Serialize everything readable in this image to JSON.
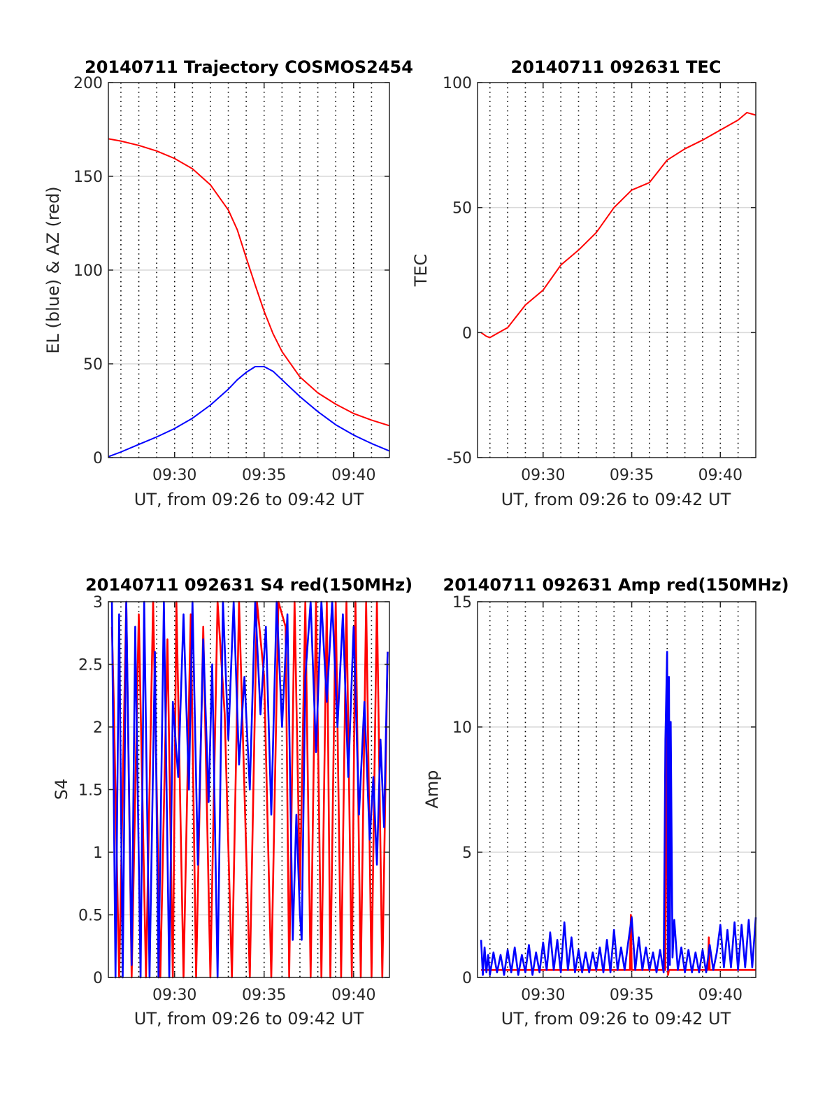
{
  "colors": {
    "red": "#ff0000",
    "blue": "#0000ff",
    "grid_major": "#d9d9d9",
    "grid_dotted": "#000000",
    "axis": "#262626"
  },
  "chart_data": [
    {
      "type": "line",
      "title": "20140711 Trajectory COSMOS2454",
      "xlabel": "UT, from 09:26 to 09:42 UT",
      "ylabel": "EL (blue) & AZ (red)",
      "xlim_minutes": [
        26.3,
        42.0
      ],
      "ylim": [
        0,
        200
      ],
      "yticks": [
        0,
        50,
        100,
        150,
        200
      ],
      "ytick_labels": [
        "0",
        "50",
        "100",
        "150",
        "200"
      ],
      "xticks_minutes": [
        30,
        35,
        40
      ],
      "xtick_labels": [
        "09:30",
        "09:35",
        "09:40"
      ],
      "dotted_vlines_minutes": [
        27,
        28,
        29,
        30,
        31,
        32,
        33,
        34,
        35,
        36,
        37,
        38,
        39,
        40,
        41
      ],
      "grid": "horizontal",
      "series": [
        {
          "color": "#ff0000",
          "x_minutes": [
            26.3,
            27,
            28,
            29,
            30,
            31,
            32,
            33,
            33.5,
            34,
            34.5,
            35,
            35.5,
            36,
            37,
            38,
            39,
            40,
            41,
            42
          ],
          "values": [
            170,
            168.8,
            166.5,
            163.5,
            159.5,
            154,
            145.5,
            132,
            121.5,
            106.5,
            92,
            78,
            66,
            56.5,
            43,
            34.5,
            28.5,
            23.5,
            20,
            17
          ]
        },
        {
          "color": "#0000ff",
          "x_minutes": [
            26.3,
            27,
            28,
            29,
            30,
            31,
            32,
            33,
            33.5,
            34,
            34.5,
            35,
            35.5,
            36,
            37,
            38,
            39,
            40,
            41,
            42
          ],
          "values": [
            0.5,
            3,
            7,
            11,
            15.5,
            21,
            28,
            36.5,
            41.5,
            45.5,
            48.5,
            48.5,
            46,
            41.5,
            32.5,
            24.5,
            17.5,
            12,
            7.5,
            3.5
          ]
        }
      ]
    },
    {
      "type": "line",
      "title": "20140711 092631 TEC",
      "xlabel": "UT, from 09:26 to 09:42 UT",
      "ylabel": "TEC",
      "xlim_minutes": [
        26.3,
        42.0
      ],
      "ylim": [
        -50,
        100
      ],
      "yticks": [
        -50,
        0,
        50,
        100
      ],
      "ytick_labels": [
        "-50",
        "0",
        "50",
        "100"
      ],
      "xticks_minutes": [
        30,
        35,
        40
      ],
      "xtick_labels": [
        "09:30",
        "09:35",
        "09:40"
      ],
      "dotted_vlines_minutes": [
        27,
        28,
        29,
        30,
        31,
        32,
        33,
        34,
        35,
        36,
        37,
        38,
        39,
        40,
        41
      ],
      "grid": "horizontal",
      "series": [
        {
          "color": "#ff0000",
          "x_minutes": [
            26.5,
            26.8,
            27.0,
            27.5,
            28,
            29,
            30,
            31,
            32,
            33,
            34,
            35,
            36,
            37,
            38,
            39,
            40,
            41,
            41.5,
            42
          ],
          "values": [
            0,
            -1.5,
            -2,
            0,
            2,
            11,
            17,
            27,
            33,
            40,
            50,
            57,
            60,
            69,
            73.5,
            77,
            81,
            85,
            88,
            87
          ]
        }
      ]
    },
    {
      "type": "line",
      "title": "20140711 092631 S4 red(150MHz)",
      "xlabel": "UT, from 09:26 to 09:42 UT",
      "ylabel": "S4",
      "xlim_minutes": [
        26.3,
        42.0
      ],
      "ylim": [
        0,
        3
      ],
      "yticks": [
        0,
        0.5,
        1,
        1.5,
        2,
        2.5,
        3
      ],
      "ytick_labels": [
        "0",
        "0.5",
        "1",
        "1.5",
        "2",
        "2.5",
        "3"
      ],
      "xticks_minutes": [
        30,
        35,
        40
      ],
      "xtick_labels": [
        "09:30",
        "09:35",
        "09:40"
      ],
      "dotted_vlines_minutes": [
        27,
        28,
        29,
        30,
        31,
        32,
        33,
        34,
        35,
        36,
        37,
        38,
        39,
        40,
        41
      ],
      "grid": "horizontal",
      "series": [
        {
          "color": "#ff0000",
          "x_minutes": [
            26.5,
            26.6,
            26.9,
            27.3,
            27.6,
            28.0,
            28.4,
            28.8,
            29.2,
            29.6,
            29.9,
            30.1,
            30.5,
            30.9,
            31.2,
            31.6,
            32.0,
            32.4,
            32.8,
            33.2,
            33.6,
            33.9,
            34.2,
            34.6,
            35.0,
            35.4,
            35.8,
            36.2,
            36.4,
            36.7,
            37.0,
            37.3,
            37.6,
            37.9,
            38.2,
            38.5,
            38.7,
            39.0,
            39.3,
            39.6,
            39.9,
            40.1,
            40.4,
            40.7,
            41.0,
            41.3,
            41.6,
            41.9
          ],
          "values": [
            2.8,
            2.2,
            0,
            3,
            0,
            2.9,
            0,
            3,
            0,
            2.7,
            0,
            3,
            0,
            2.9,
            0,
            2.8,
            0,
            3,
            2.1,
            0,
            3,
            1.5,
            0,
            3,
            2.4,
            0,
            3,
            2.8,
            0,
            3,
            0.7,
            3,
            0,
            3,
            0,
            3,
            0,
            3,
            0,
            3,
            0,
            3,
            0,
            3,
            0,
            3,
            0,
            2.6
          ]
        },
        {
          "color": "#0000ff",
          "x_minutes": [
            26.5,
            26.7,
            26.9,
            27.1,
            27.3,
            27.6,
            27.8,
            28.1,
            28.3,
            28.6,
            28.9,
            29.1,
            29.4,
            29.7,
            29.9,
            30.2,
            30.5,
            30.8,
            31.0,
            31.3,
            31.6,
            31.9,
            32.1,
            32.4,
            32.7,
            33.0,
            33.3,
            33.6,
            33.9,
            34.2,
            34.5,
            34.8,
            35.1,
            35.4,
            35.7,
            36.0,
            36.3,
            36.6,
            36.8,
            37.0,
            37.1,
            37.3,
            37.6,
            37.9,
            38.2,
            38.5,
            38.8,
            39.1,
            39.4,
            39.7,
            40.0,
            40.3,
            40.6,
            40.9,
            41.1,
            41.3,
            41.5,
            41.7,
            41.9
          ],
          "values": [
            3,
            0,
            2.9,
            0,
            3,
            0.1,
            2.8,
            0,
            3,
            0,
            2.6,
            0,
            3,
            0,
            2.2,
            1.6,
            2.9,
            1.5,
            3,
            0.9,
            2.7,
            1.4,
            2.5,
            0,
            3,
            1.9,
            3,
            1.7,
            2.4,
            1.5,
            3,
            2.1,
            2.8,
            1.3,
            3,
            2.0,
            2.9,
            0.3,
            1.3,
            0.5,
            0.3,
            2.4,
            3,
            1.8,
            3,
            2.2,
            3,
            2.0,
            2.9,
            1.6,
            2.8,
            1.3,
            2.2,
            1.1,
            1.6,
            0.9,
            1.9,
            1.2,
            2.6
          ]
        }
      ]
    },
    {
      "type": "line",
      "title": "20140711 092631 Amp red(150MHz)",
      "xlabel": "UT, from 09:26 to 09:42 UT",
      "ylabel": "Amp",
      "xlim_minutes": [
        26.3,
        42.0
      ],
      "ylim": [
        0,
        15
      ],
      "yticks": [
        0,
        5,
        10,
        15
      ],
      "ytick_labels": [
        "0",
        "5",
        "10",
        "15"
      ],
      "xticks_minutes": [
        30,
        35,
        40
      ],
      "xtick_labels": [
        "09:30",
        "09:35",
        "09:40"
      ],
      "dotted_vlines_minutes": [
        27,
        28,
        29,
        30,
        31,
        32,
        33,
        34,
        35,
        36,
        37,
        38,
        39,
        40,
        41
      ],
      "grid": "horizontal",
      "series": [
        {
          "color": "#ff0000",
          "x_minutes": [
            26.5,
            34.9,
            34.95,
            35.0,
            36.9,
            37.0,
            37.05,
            37.1,
            39.3,
            39.35,
            39.4,
            42.0
          ],
          "values": [
            0.3,
            0.3,
            2.5,
            0.3,
            0.3,
            12.9,
            0.1,
            0.3,
            0.3,
            1.6,
            0.3,
            0.3
          ]
        },
        {
          "color": "#0000ff",
          "x_minutes": [
            26.5,
            26.6,
            26.7,
            26.8,
            26.9,
            27.0,
            27.2,
            27.4,
            27.6,
            27.8,
            28.0,
            28.2,
            28.4,
            28.6,
            28.8,
            29.0,
            29.2,
            29.4,
            29.6,
            29.8,
            30.0,
            30.2,
            30.4,
            30.6,
            30.8,
            31.0,
            31.2,
            31.4,
            31.6,
            31.8,
            32.0,
            32.2,
            32.4,
            32.6,
            32.8,
            33.0,
            33.2,
            33.4,
            33.6,
            33.8,
            34.0,
            34.2,
            34.4,
            34.6,
            34.8,
            35.0,
            35.2,
            35.4,
            35.6,
            35.8,
            36.0,
            36.2,
            36.4,
            36.6,
            36.8,
            36.9,
            37.0,
            37.05,
            37.1,
            37.15,
            37.2,
            37.3,
            37.4,
            37.6,
            37.8,
            38.0,
            38.2,
            38.4,
            38.6,
            38.8,
            39.0,
            39.2,
            39.4,
            39.6,
            39.8,
            40.0,
            40.2,
            40.4,
            40.6,
            40.8,
            41.0,
            41.2,
            41.4,
            41.6,
            41.8,
            42.0
          ],
          "values": [
            1.5,
            0.1,
            1.2,
            0.2,
            0.9,
            0.1,
            1.0,
            0.2,
            0.9,
            0.1,
            1.1,
            0.2,
            1.2,
            0.1,
            0.9,
            0.2,
            1.3,
            0.1,
            1.0,
            0.2,
            1.4,
            0.3,
            1.8,
            0.3,
            1.5,
            0.2,
            2.2,
            0.3,
            1.6,
            0.2,
            1.1,
            0.2,
            1.0,
            0.2,
            1.0,
            0.3,
            1.2,
            0.2,
            1.5,
            0.2,
            1.9,
            0.3,
            1.2,
            0.3,
            1.4,
            2.4,
            0.3,
            1.6,
            0.3,
            1.2,
            0.3,
            1.0,
            0.2,
            1.1,
            0.2,
            9.5,
            13.0,
            0.3,
            12.0,
            0.5,
            10.2,
            0.8,
            2.3,
            0.3,
            1.2,
            0.2,
            1.1,
            0.2,
            1.0,
            0.2,
            1.1,
            0.2,
            1.3,
            0.3,
            1.0,
            2.1,
            0.4,
            1.9,
            0.4,
            2.2,
            0.3,
            2.1,
            0.4,
            2.3,
            0.4,
            2.4
          ]
        }
      ]
    }
  ]
}
